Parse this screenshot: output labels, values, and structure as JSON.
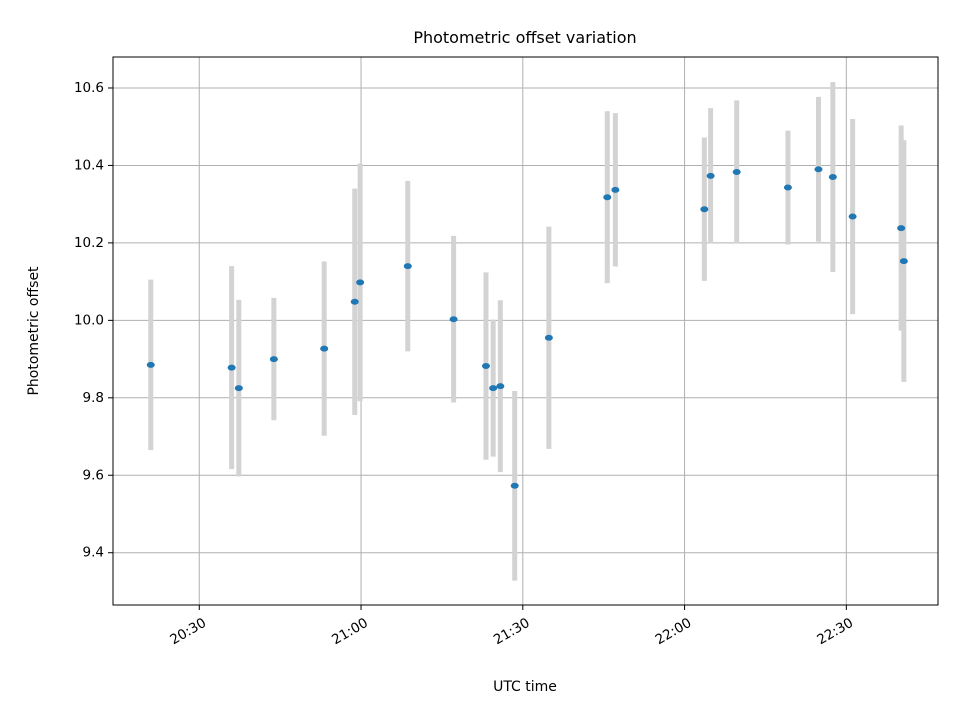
{
  "chart_data": {
    "type": "scatter",
    "title": "Photometric offset variation",
    "xlabel": "UTC time",
    "ylabel": "Photometric offset",
    "x_axis_kind": "time",
    "xlim": [
      "20:14",
      "22:47"
    ],
    "ylim": [
      9.265,
      10.68
    ],
    "grid": true,
    "x_ticks": [
      "20:30",
      "21:00",
      "21:30",
      "22:00",
      "22:30"
    ],
    "y_ticks": [
      9.4,
      9.6,
      9.8,
      10.0,
      10.2,
      10.4,
      10.6
    ],
    "y_tick_labels": [
      "9.4",
      "9.6",
      "9.8",
      "10.0",
      "10.2",
      "10.4",
      "10.6"
    ],
    "colors": {
      "point": "#1f77b4",
      "errorbar": "#d3d3d3",
      "grid": "#b0b0b0",
      "axes": "#000000"
    },
    "series": [
      {
        "points": [
          {
            "x": "20:21:00",
            "y": 9.885,
            "err": 0.22
          },
          {
            "x": "20:36:00",
            "y": 9.878,
            "err": 0.262
          },
          {
            "x": "20:37:20",
            "y": 9.825,
            "err": 0.228
          },
          {
            "x": "20:43:50",
            "y": 9.9,
            "err": 0.158
          },
          {
            "x": "20:53:10",
            "y": 9.927,
            "err": 0.225
          },
          {
            "x": "20:58:50",
            "y": 10.048,
            "err": 0.292
          },
          {
            "x": "20:59:50",
            "y": 10.098,
            "err": 0.307
          },
          {
            "x": "21:08:40",
            "y": 10.14,
            "err": 0.22
          },
          {
            "x": "21:17:10",
            "y": 10.003,
            "err": 0.215
          },
          {
            "x": "21:23:10",
            "y": 9.882,
            "err": 0.242
          },
          {
            "x": "21:24:30",
            "y": 9.825,
            "err": 0.177
          },
          {
            "x": "21:25:50",
            "y": 9.83,
            "err": 0.222
          },
          {
            "x": "21:28:30",
            "y": 9.573,
            "err": 0.245
          },
          {
            "x": "21:34:50",
            "y": 9.955,
            "err": 0.287
          },
          {
            "x": "21:45:40",
            "y": 10.318,
            "err": 0.222
          },
          {
            "x": "21:47:10",
            "y": 10.337,
            "err": 0.198
          },
          {
            "x": "22:03:40",
            "y": 10.287,
            "err": 0.185
          },
          {
            "x": "22:04:50",
            "y": 10.373,
            "err": 0.175
          },
          {
            "x": "22:09:40",
            "y": 10.383,
            "err": 0.185
          },
          {
            "x": "22:19:10",
            "y": 10.343,
            "err": 0.147
          },
          {
            "x": "22:24:50",
            "y": 10.39,
            "err": 0.187
          },
          {
            "x": "22:27:30",
            "y": 10.37,
            "err": 0.245
          },
          {
            "x": "22:31:10",
            "y": 10.268,
            "err": 0.252
          },
          {
            "x": "22:40:10",
            "y": 10.238,
            "err": 0.265
          },
          {
            "x": "22:40:40",
            "y": 10.153,
            "err": 0.312
          }
        ]
      }
    ]
  }
}
